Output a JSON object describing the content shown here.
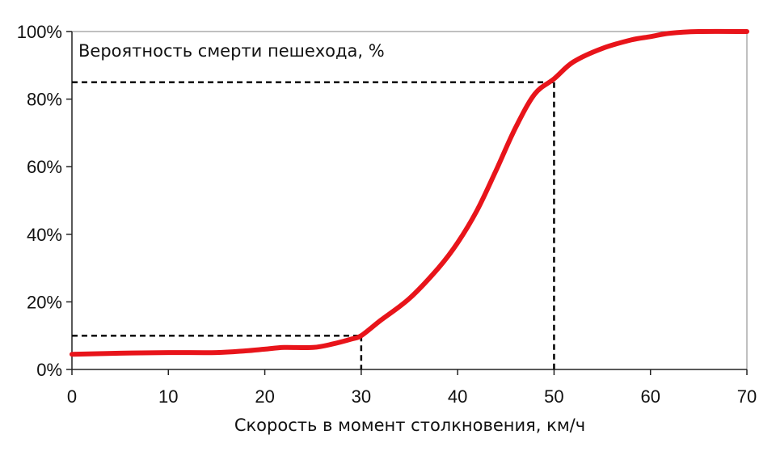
{
  "chart_data": {
    "type": "line",
    "title": "Вероятность смерти пешехода, %",
    "xlabel": "Скорость в момент столкновения, км/ч",
    "ylabel": "",
    "xlim": [
      0,
      70
    ],
    "ylim": [
      0,
      100
    ],
    "x_ticks": [
      0,
      10,
      20,
      30,
      40,
      50,
      60,
      70
    ],
    "x_tick_labels": [
      "0",
      "10",
      "20",
      "30",
      "40",
      "50",
      "60",
      "70"
    ],
    "y_ticks": [
      0,
      20,
      40,
      60,
      80,
      100
    ],
    "y_tick_labels": [
      "0%",
      "20%",
      "40%",
      "60%",
      "80%",
      "100%"
    ],
    "grid": false,
    "series": [
      {
        "color": "#e8141a",
        "x": [
          0,
          5,
          10,
          15,
          18,
          20,
          22,
          25,
          27,
          29,
          30,
          32,
          35,
          38,
          40,
          42,
          44,
          46,
          48,
          50,
          52,
          55,
          58,
          60,
          62,
          65,
          70
        ],
        "y": [
          4.5,
          4.8,
          5.0,
          5.0,
          5.5,
          6.0,
          6.5,
          6.5,
          7.5,
          9.0,
          10.0,
          14.5,
          21.0,
          30.0,
          37.5,
          47.0,
          59.0,
          71.5,
          81.5,
          86.0,
          91.0,
          95.0,
          97.5,
          98.5,
          99.5,
          100.0,
          100.0
        ]
      }
    ],
    "reference_lines": [
      {
        "x": 30,
        "y": 10
      },
      {
        "x": 50,
        "y": 85
      }
    ]
  }
}
